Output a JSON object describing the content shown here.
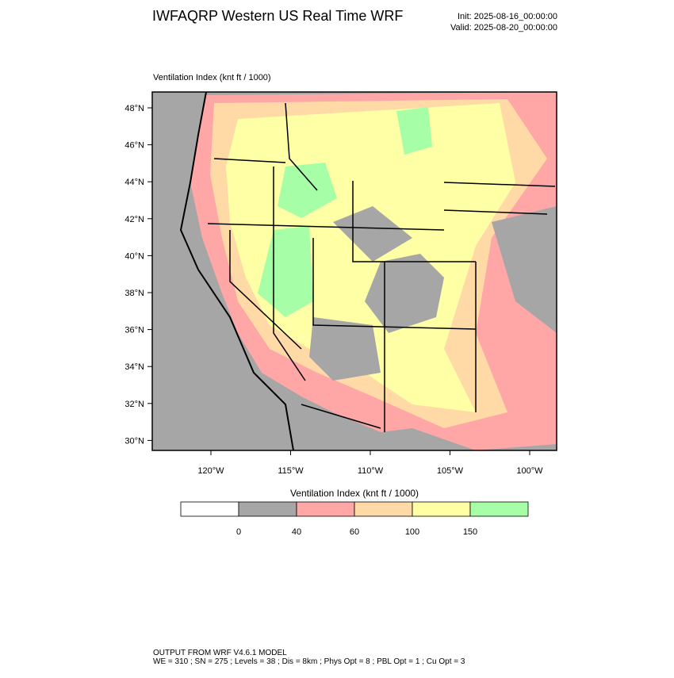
{
  "header": {
    "title": "IWFAQRP Western US Real Time WRF",
    "init": "Init: 2025-08-16_00:00:00",
    "valid": "Valid: 2025-08-20_00:00:00"
  },
  "map": {
    "title": "Ventilation Index   (knt ft / 1000)",
    "lat_labels": [
      "48°N",
      "46°N",
      "44°N",
      "42°N",
      "40°N",
      "38°N",
      "36°N",
      "34°N",
      "32°N",
      "30°N"
    ],
    "lon_labels": [
      "120°W",
      "115°W",
      "110°W",
      "105°W",
      "100°W"
    ]
  },
  "colorbar": {
    "title": "Ventilation Index   (knt ft / 1000)",
    "levels": [
      0,
      40,
      60,
      100,
      150
    ],
    "colors": [
      "#ffffff",
      "#a6a6a6",
      "#ffa6a6",
      "#ffd9a6",
      "#ffffa6",
      "#a6ffa6"
    ]
  },
  "footer": {
    "line1": "OUTPUT FROM WRF V4.6.1 MODEL",
    "line2": "WE = 310 ; SN = 275 ; Levels = 38 ; Dis = 8km ; Phys Opt = 8 ; PBL Opt = 1 ; Cu Opt = 3"
  }
}
